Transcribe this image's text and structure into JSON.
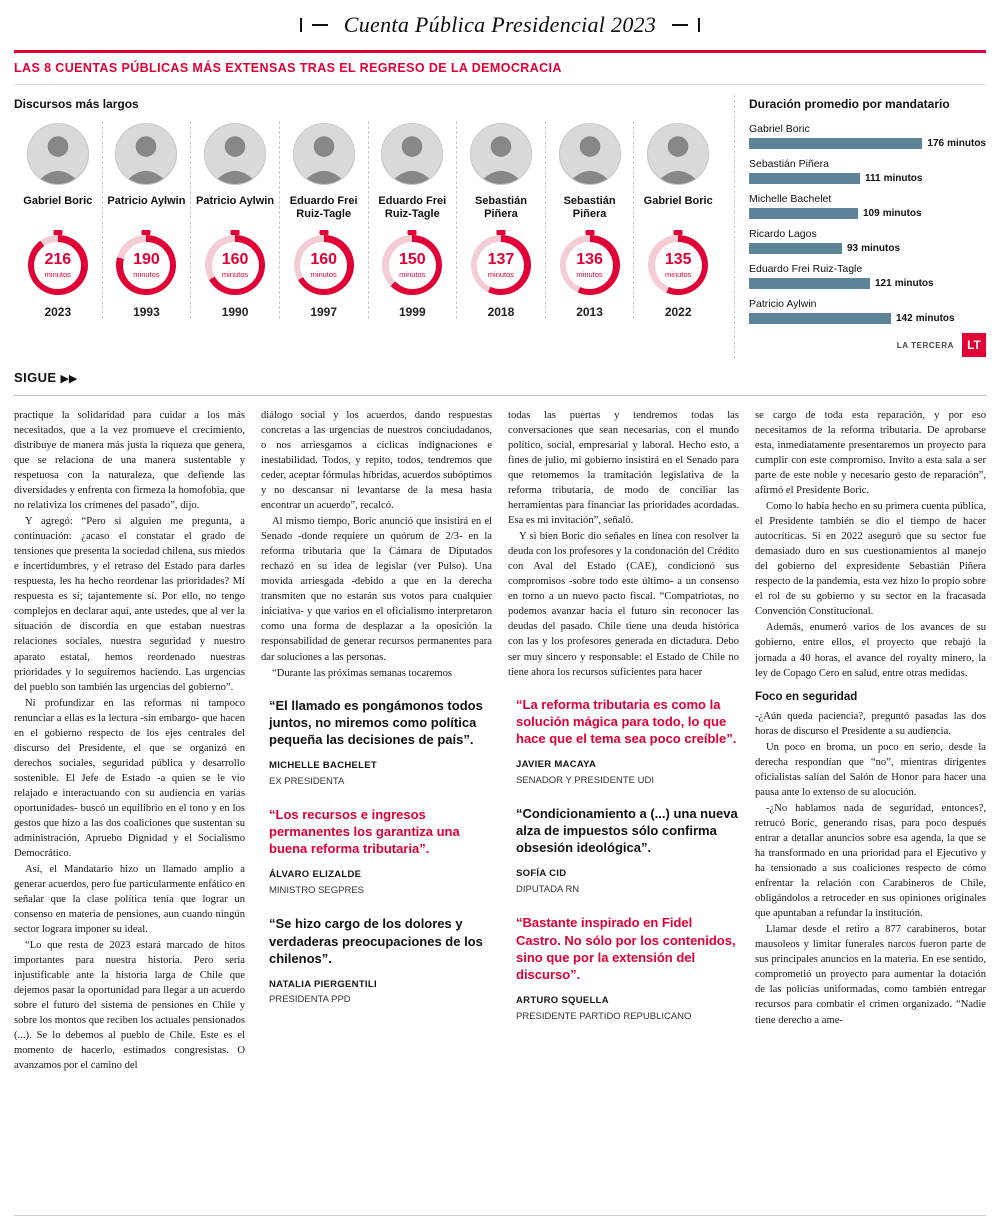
{
  "colors": {
    "accent": "#e00036",
    "bar": "#5d8399"
  },
  "masthead": {
    "title": "Cuenta Pública Presidencial 2023"
  },
  "infographic": {
    "headline": "LAS 8 CUENTAS PÚBLICAS MÁS EXTENSAS TRAS EL REGRESO DE LA DEMOCRACIA",
    "left_title": "Discursos más largos",
    "unit_label": "minutos",
    "speeches": [
      {
        "name": "Gabriel Boric",
        "minutes": 216,
        "year": "2023"
      },
      {
        "name": "Patricio Aylwin",
        "minutes": 190,
        "year": "1993"
      },
      {
        "name": "Patricio Aylwin",
        "minutes": 160,
        "year": "1990"
      },
      {
        "name": "Eduardo Frei Ruiz-Tagle",
        "minutes": 160,
        "year": "1997"
      },
      {
        "name": "Eduardo Frei Ruiz-Tagle",
        "minutes": 150,
        "year": "1999"
      },
      {
        "name": "Sebastián Piñera",
        "minutes": 137,
        "year": "2018"
      },
      {
        "name": "Sebastián Piñera",
        "minutes": 136,
        "year": "2013"
      },
      {
        "name": "Gabriel Boric",
        "minutes": 135,
        "year": "2022"
      }
    ],
    "credit": "LA TERCERA",
    "logo": "LT"
  },
  "chart_data": {
    "type": "bar",
    "orientation": "horizontal",
    "title": "Duración promedio por mandatario",
    "categories": [
      "Gabriel Boric",
      "Sebastián Piñera",
      "Michelle Bachelet",
      "Ricardo Lagos",
      "Eduardo Frei Ruiz-Tagle",
      "Patricio Aylwin"
    ],
    "values": [
      176,
      111,
      109,
      93,
      121,
      142
    ],
    "unit": "minutos",
    "xlim": [
      0,
      240
    ],
    "grid": false,
    "legend": false
  },
  "continuation": {
    "label": "SIGUE",
    "arrows": "▶▶"
  },
  "article": {
    "col1": [
      "practique la solidaridad para cuidar a los más necesitados, que a la vez promueve el crecimiento, distribuye de manera más justa la riqueza que genera, que se relaciona de una manera sustentable y respetuosa con la naturaleza, que defiende las diversidades y enfrenta con firmeza la homofobia, que no relativiza los crímenes del pasado”, dijo.",
      "Y agregó: “Pero si alguien me pregunta, a continuación: ¿acaso el constatar el grado de tensiones que presenta la sociedad chilena, sus miedos e incertidumbres, y el retraso del Estado para darles respuesta, les ha hecho reordenar las prioridades? Mi respuesta es sí; tajantemente sí. Por ello, no tengo complejos en declarar aquí, ante ustedes, que al ver la situación de discordia en que estaban nuestras relaciones sociales, nuestra seguridad y nuestro aparato estatal, hemos reordenado nuestras prioridades y lo seguiremos haciendo. Las urgencias del pueblo son también las urgencias del gobierno”.",
      "Ni profundizar en las reformas ni tampoco renunciar a ellas es la lectura -sin embargo- que hacen en el gobierno respecto de los ejes centrales del discurso del Presidente, el que se organizó en derechos sociales, seguridad pública y desarrollo sostenible. El Jefe de Estado -a quien se le vio relajado e interactuando con su audiencia en varias oportunidades- buscó un equilibrio en el tono y en los gestos que hizo a las dos coaliciones que sustentan su administración, Apruebo Dignidad y el Socialismo Democrático.",
      "Así, el Mandatario hizo un llamado amplio a generar acuerdos, pero fue particularmente enfático en señalar que la clase política tenía que lograr un consenso en materia de pensiones, aun cuando ningún sector lograra imponer su ideal.",
      "“Lo que resta de 2023 estará marcado de hitos importantes para nuestra historia. Pero sería injustificable ante la historia larga de Chile que dejemos pasar la oportunidad para llegar a un acuerdo sobre el futuro del sistema de pensiones en Chile y sobre los montos que reciben los actuales pensionados (...). Se lo debemos al pueblo de Chile. Este es el momento de hacerlo, estimados congresistas. O avanzamos por el camino del"
    ],
    "col2": [
      "diálogo social y los acuerdos, dando respuestas concretas a las urgencias de nuestros conciudadanos, o nos arriesgamos a cíclicas indignaciones e inestabilidad. Todos, y repito, todos, tendremos que ceder, aceptar fórmulas híbridas, acuerdos subóptimos y no descansar ni levantarse de la mesa hasta encontrar un acuerdo”, recalcó.",
      "Al mismo tiempo, Boric anunció que insistirá en el Senado -donde requiere un quórum de 2/3- en la reforma tributaria que la Cámara de Diputados rechazó en su idea de legislar (ver Pulso). Una movida arriesgada -debido a que en la derecha transmiten que no estarán sus votos para cualquier iniciativa- y que varios en el oficialismo interpretaron como una forma de desplazar a la oposición la responsabilidad de generar recursos permanentes para dar soluciones a las personas.",
      "“Durante las próximas semanas tocaremos"
    ],
    "col3": [
      "todas las puertas y tendremos todas las conversaciones que sean necesarias, con el mundo político, social, empresarial y laboral. Hecho esto, a fines de julio, mi gobierno insistirá en el Senado para que retomemos la tramitación legislativa de la reforma tributaria, de modo de conciliar las herramientas para financiar las prioridades acordadas. Esa es mi invitación”, señaló.",
      "Y si bien Boric dio señales en línea con resolver la deuda con los profesores y la condonación del Crédito con Aval del Estado (CAE), condicionó sus compromisos -sobre todo este último- a un consenso en torno a un nuevo pacto fiscal. “Compatriotas, no podemos avanzar hacia el futuro sin reconocer las deudas del pasado. Chile tiene una deuda histórica con las y los profesores generada en dictadura. Debo ser muy sincero y responsable: el Estado de Chile no tiene ahora los recursos suficientes para hacer"
    ],
    "col4_a": [
      "se cargo de toda esta reparación, y por eso necesitamos de la reforma tributaria. De aprobarse esta, inmediatamente presentaremos un proyecto para cumplir con este compromiso. Invito a esta sala a ser parte de este noble y necesario gesto de reparación”, afirmó el Presidente Boric.",
      "Como lo había hecho en su primera cuenta pública, el Presidente también se dio el tiempo de hacer autocríticas. Si en 2022 aseguró que su sector fue demasiado duro en sus cuestionamientos al manejo del gobierno del expresidente Sebastián Piñera respecto de la pandemia, esta vez hizo lo propio sobre el rol de su gobierno y su sector en la fracasada Convención Constitucional.",
      "Además, enumeró varios de los avances de su gobierno, entre ellos, el proyecto que rebajó la jornada a 40 horas, el avance del royalty minero, la ley de Copago Cero en salud, entre otras medidas."
    ],
    "subhead": "Foco en seguridad",
    "col4_b": [
      "-¿Aún queda paciencia?, preguntó pasadas las dos horas de discurso el Presidente a su audiencia.",
      "Un poco en broma, un poco en serio, desde la derecha respondían que “no”, mientras dirigentes oficialistas salían del Salón de Honor para hacer una pausa ante lo extenso de su alocución.",
      "-¿No hablamos nada de seguridad, entonces?, retrucó Boric, generando risas, para poco después entrar a detallar anuncios sobre esa agenda, la que se ha transformado en una prioridad para el Ejecutivo y ha tensionado a sus coaliciones respecto de cómo enfrentar la relación con Carabineros de Chile, obligándolos a retroceder en sus opiniones originales que apuntaban a refundar la institución.",
      "Llamar desde el retiro a 877 carabineros, botar mausoleos y limitar funerales narcos fueron parte de sus principales anuncios en la materia. En ese sentido, comprometió un proyecto para aumentar la dotación de las policías uniformadas, como también entregar recursos para combatir el crimen organizado. “Nadie tiene derecho a ame-"
    ]
  },
  "quotes": [
    {
      "text": "“El llamado es pongámonos todos juntos, no miremos como política pequeña las decisiones de país”.",
      "name": "MICHELLE BACHELET",
      "role": "EX PRESIDENTA",
      "color": "black"
    },
    {
      "text": "“Los recursos e ingresos permanentes los garantiza una buena reforma tributaria”.",
      "name": "ÁLVARO ELIZALDE",
      "role": "MINISTRO SEGPRES",
      "color": "red"
    },
    {
      "text": "“Se hizo cargo de los dolores y verdaderas preocupaciones de los chilenos”.",
      "name": "NATALIA PIERGENTILI",
      "role": "PRESIDENTA PPD",
      "color": "black"
    },
    {
      "text": "“La reforma tributaria es como la solución mágica para todo, lo que hace que el tema sea poco creíble”.",
      "name": "JAVIER MACAYA",
      "role": "SENADOR Y PRESIDENTE UDI",
      "color": "red"
    },
    {
      "text": "“Condicionamiento a (...) una nueva alza de impuestos sólo confirma obsesión ideológica”.",
      "name": "SOFÍA CID",
      "role": "DIPUTADA RN",
      "color": "black"
    },
    {
      "text": "“Bastante inspirado en Fidel Castro. No sólo por los contenidos, sino que por la extensión del discurso”.",
      "name": "ARTURO SQUELLA",
      "role": "PRESIDENTE PARTIDO REPUBLICANO",
      "color": "red"
    }
  ]
}
